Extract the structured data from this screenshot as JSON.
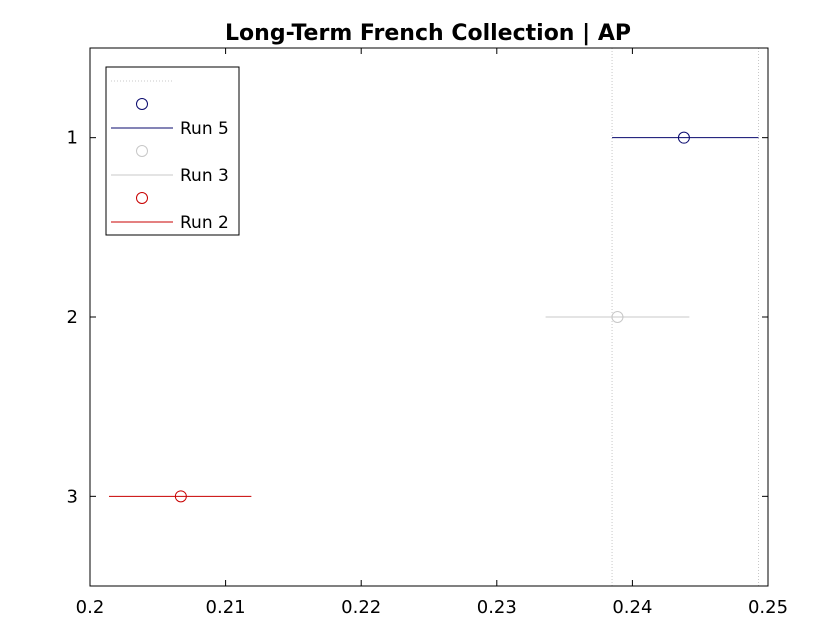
{
  "chart_data": {
    "type": "scatter",
    "title": "Long-Term French Collection | AP",
    "xlabel": "",
    "ylabel": "",
    "xlim": [
      0.2,
      0.25
    ],
    "ylim": [
      0.5,
      3.5
    ],
    "y_reversed": true,
    "x_ticks": [
      0.2,
      0.21,
      0.22,
      0.23,
      0.24,
      0.25
    ],
    "x_tick_labels": [
      "0.2",
      "0.21",
      "0.22",
      "0.23",
      "0.24",
      "0.25"
    ],
    "y_ticks": [
      1,
      2,
      3
    ],
    "y_tick_labels": [
      "1",
      "2",
      "3"
    ],
    "grid": false,
    "legend_position": "top-left",
    "reference_lines": [
      {
        "x": 0.2385,
        "style": "dotted",
        "color": "#c8c8c8"
      },
      {
        "x": 0.2493,
        "style": "dotted",
        "color": "#c8c8c8"
      }
    ],
    "series": [
      {
        "name": "Run 5",
        "y": 1,
        "mean": 0.2438,
        "low": 0.2385,
        "high": 0.2493,
        "color": "#0a0a6e"
      },
      {
        "name": "Run 3",
        "y": 2,
        "mean": 0.2389,
        "low": 0.2336,
        "high": 0.2442,
        "color": "#c8c8c8"
      },
      {
        "name": "Run 2",
        "y": 3,
        "mean": 0.2067,
        "low": 0.2014,
        "high": 0.2119,
        "color": "#c80000"
      }
    ]
  }
}
